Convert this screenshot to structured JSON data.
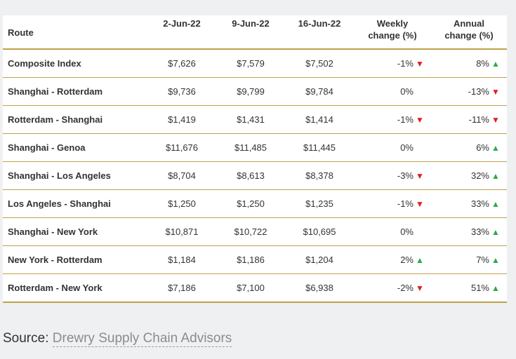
{
  "table": {
    "headers": {
      "route": "Route",
      "d1": "2-Jun-22",
      "d2": "9-Jun-22",
      "d3": "16-Jun-22",
      "weekly_l1": "Weekly",
      "weekly_l2": "change (%)",
      "annual_l1": "Annual",
      "annual_l2": "change (%)"
    },
    "rows": [
      {
        "route": "Composite Index",
        "d1": "$7,626",
        "d2": "$7,579",
        "d3": "$7,502",
        "weekly": "-1%",
        "weekly_dir": "down",
        "annual": "8%",
        "annual_dir": "up"
      },
      {
        "route": "Shanghai - Rotterdam",
        "d1": "$9,736",
        "d2": "$9,799",
        "d3": "$9,784",
        "weekly": "0%",
        "weekly_dir": "none",
        "annual": "-13%",
        "annual_dir": "down"
      },
      {
        "route": "Rotterdam - Shanghai",
        "d1": "$1,419",
        "d2": "$1,431",
        "d3": "$1,414",
        "weekly": "-1%",
        "weekly_dir": "down",
        "annual": "-11%",
        "annual_dir": "down"
      },
      {
        "route": "Shanghai - Genoa",
        "d1": "$11,676",
        "d2": "$11,485",
        "d3": "$11,445",
        "weekly": "0%",
        "weekly_dir": "none",
        "annual": "6%",
        "annual_dir": "up"
      },
      {
        "route": "Shanghai - Los Angeles",
        "d1": "$8,704",
        "d2": "$8,613",
        "d3": "$8,378",
        "weekly": "-3%",
        "weekly_dir": "down",
        "annual": "32%",
        "annual_dir": "up"
      },
      {
        "route": "Los Angeles - Shanghai",
        "d1": "$1,250",
        "d2": "$1,250",
        "d3": "$1,235",
        "weekly": "-1%",
        "weekly_dir": "down",
        "annual": "33%",
        "annual_dir": "up"
      },
      {
        "route": "Shanghai - New York",
        "d1": "$10,871",
        "d2": "$10,722",
        "d3": "$10,695",
        "weekly": "0%",
        "weekly_dir": "none",
        "annual": "33%",
        "annual_dir": "up"
      },
      {
        "route": "New York - Rotterdam",
        "d1": "$1,184",
        "d2": "$1,186",
        "d3": "$1,204",
        "weekly": "2%",
        "weekly_dir": "up",
        "annual": "7%",
        "annual_dir": "up"
      },
      {
        "route": "Rotterdam - New York",
        "d1": "$7,186",
        "d2": "$7,100",
        "d3": "$6,938",
        "weekly": "-2%",
        "weekly_dir": "down",
        "annual": "51%",
        "annual_dir": "up"
      }
    ]
  },
  "source": {
    "label": "Source:",
    "link": "Drewry Supply Chain Advisors"
  },
  "colors": {
    "rule": "#bfa24a",
    "up_arrow": "#2eaa4a",
    "down_arrow": "#e02020",
    "link": "#8a8d90"
  },
  "icons": {
    "up": "triangle-up-icon",
    "down": "triangle-down-icon"
  }
}
